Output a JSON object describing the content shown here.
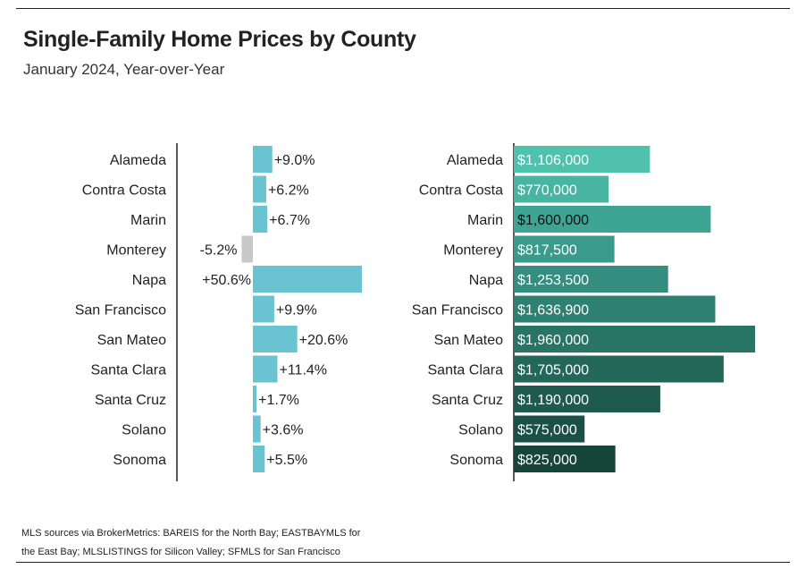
{
  "header": {
    "title": "Single-Family Home Prices by County",
    "subtitle": "January 2024, Year-over-Year"
  },
  "footer": {
    "source": "MLS sources via BrokerMetrics: BAREIS for the North Bay; EASTBAYMLS for the East Bay; MLSLISTINGS for Silicon Valley; SFMLS for San Francisco"
  },
  "colors": {
    "positive_change": "#6ac3d0",
    "negative_change": "#c8c8c8",
    "price_gradient": [
      "#4fc1ad",
      "#48b5a3",
      "#3ea595",
      "#3a9a8b",
      "#348d7f",
      "#2e8072",
      "#287465",
      "#236759",
      "#1e5b4e",
      "#1a5045",
      "#164539"
    ]
  },
  "chart_data": [
    {
      "type": "bar",
      "orientation": "horizontal",
      "categories": [
        "Alameda",
        "Contra Costa",
        "Marin",
        "Monterey",
        "Napa",
        "San Francisco",
        "San Mateo",
        "Santa Clara",
        "Santa Cruz",
        "Solano",
        "Sonoma"
      ],
      "values": [
        9.0,
        6.2,
        6.7,
        -5.2,
        50.6,
        9.9,
        20.6,
        11.4,
        1.7,
        3.6,
        5.5
      ],
      "labels": [
        "+9.0%",
        "+6.2%",
        "+6.7%",
        "-5.2%",
        "+50.6%",
        "+9.9%",
        "+20.6%",
        "+11.4%",
        "+1.7%",
        "+3.6%",
        "+5.5%"
      ],
      "unit": "%",
      "xlim": [
        -10,
        50.6
      ],
      "grid": false,
      "legend": "none"
    },
    {
      "type": "bar",
      "orientation": "horizontal",
      "categories": [
        "Alameda",
        "Contra Costa",
        "Marin",
        "Monterey",
        "Napa",
        "San Francisco",
        "San Mateo",
        "Santa Clara",
        "Santa Cruz",
        "Solano",
        "Sonoma"
      ],
      "values": [
        1106000,
        770000,
        1600000,
        817500,
        1253500,
        1636900,
        1960000,
        1705000,
        1190000,
        575000,
        825000
      ],
      "labels": [
        "$1,106,000",
        "$770,000",
        "$1,600,000",
        "$817,500",
        "$1,253,500",
        "$1,636,900",
        "$1,960,000",
        "$1,705,000",
        "$1,190,000",
        "$575,000",
        "$825,000"
      ],
      "unit": "$",
      "xlim": [
        0,
        1960000
      ],
      "grid": false,
      "legend": "none"
    }
  ]
}
